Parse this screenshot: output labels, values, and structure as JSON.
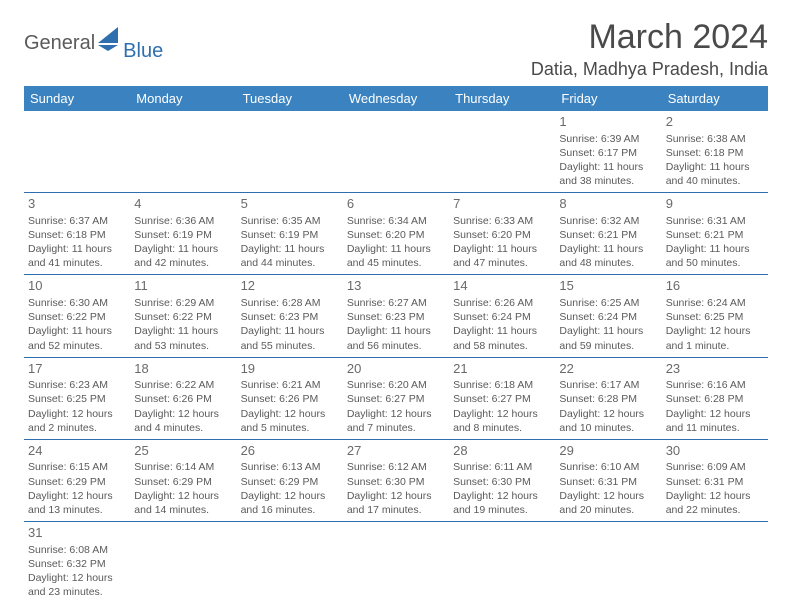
{
  "brand": {
    "part1": "General",
    "part2": "Blue",
    "sail_color": "#2f6fb0"
  },
  "title": "March 2024",
  "location": "Datia, Madhya Pradesh, India",
  "weekdays": [
    "Sunday",
    "Monday",
    "Tuesday",
    "Wednesday",
    "Thursday",
    "Friday",
    "Saturday"
  ],
  "colors": {
    "header_bg": "#3b83c0",
    "header_text": "#ffffff",
    "cell_border": "#2f6fb0",
    "text": "#555555",
    "title_text": "#4a4a4a"
  },
  "weeks": [
    [
      null,
      null,
      null,
      null,
      null,
      {
        "n": "1",
        "sunrise": "6:39 AM",
        "sunset": "6:17 PM",
        "daylight": "11 hours and 38 minutes."
      },
      {
        "n": "2",
        "sunrise": "6:38 AM",
        "sunset": "6:18 PM",
        "daylight": "11 hours and 40 minutes."
      }
    ],
    [
      {
        "n": "3",
        "sunrise": "6:37 AM",
        "sunset": "6:18 PM",
        "daylight": "11 hours and 41 minutes."
      },
      {
        "n": "4",
        "sunrise": "6:36 AM",
        "sunset": "6:19 PM",
        "daylight": "11 hours and 42 minutes."
      },
      {
        "n": "5",
        "sunrise": "6:35 AM",
        "sunset": "6:19 PM",
        "daylight": "11 hours and 44 minutes."
      },
      {
        "n": "6",
        "sunrise": "6:34 AM",
        "sunset": "6:20 PM",
        "daylight": "11 hours and 45 minutes."
      },
      {
        "n": "7",
        "sunrise": "6:33 AM",
        "sunset": "6:20 PM",
        "daylight": "11 hours and 47 minutes."
      },
      {
        "n": "8",
        "sunrise": "6:32 AM",
        "sunset": "6:21 PM",
        "daylight": "11 hours and 48 minutes."
      },
      {
        "n": "9",
        "sunrise": "6:31 AM",
        "sunset": "6:21 PM",
        "daylight": "11 hours and 50 minutes."
      }
    ],
    [
      {
        "n": "10",
        "sunrise": "6:30 AM",
        "sunset": "6:22 PM",
        "daylight": "11 hours and 52 minutes."
      },
      {
        "n": "11",
        "sunrise": "6:29 AM",
        "sunset": "6:22 PM",
        "daylight": "11 hours and 53 minutes."
      },
      {
        "n": "12",
        "sunrise": "6:28 AM",
        "sunset": "6:23 PM",
        "daylight": "11 hours and 55 minutes."
      },
      {
        "n": "13",
        "sunrise": "6:27 AM",
        "sunset": "6:23 PM",
        "daylight": "11 hours and 56 minutes."
      },
      {
        "n": "14",
        "sunrise": "6:26 AM",
        "sunset": "6:24 PM",
        "daylight": "11 hours and 58 minutes."
      },
      {
        "n": "15",
        "sunrise": "6:25 AM",
        "sunset": "6:24 PM",
        "daylight": "11 hours and 59 minutes."
      },
      {
        "n": "16",
        "sunrise": "6:24 AM",
        "sunset": "6:25 PM",
        "daylight": "12 hours and 1 minute."
      }
    ],
    [
      {
        "n": "17",
        "sunrise": "6:23 AM",
        "sunset": "6:25 PM",
        "daylight": "12 hours and 2 minutes."
      },
      {
        "n": "18",
        "sunrise": "6:22 AM",
        "sunset": "6:26 PM",
        "daylight": "12 hours and 4 minutes."
      },
      {
        "n": "19",
        "sunrise": "6:21 AM",
        "sunset": "6:26 PM",
        "daylight": "12 hours and 5 minutes."
      },
      {
        "n": "20",
        "sunrise": "6:20 AM",
        "sunset": "6:27 PM",
        "daylight": "12 hours and 7 minutes."
      },
      {
        "n": "21",
        "sunrise": "6:18 AM",
        "sunset": "6:27 PM",
        "daylight": "12 hours and 8 minutes."
      },
      {
        "n": "22",
        "sunrise": "6:17 AM",
        "sunset": "6:28 PM",
        "daylight": "12 hours and 10 minutes."
      },
      {
        "n": "23",
        "sunrise": "6:16 AM",
        "sunset": "6:28 PM",
        "daylight": "12 hours and 11 minutes."
      }
    ],
    [
      {
        "n": "24",
        "sunrise": "6:15 AM",
        "sunset": "6:29 PM",
        "daylight": "12 hours and 13 minutes."
      },
      {
        "n": "25",
        "sunrise": "6:14 AM",
        "sunset": "6:29 PM",
        "daylight": "12 hours and 14 minutes."
      },
      {
        "n": "26",
        "sunrise": "6:13 AM",
        "sunset": "6:29 PM",
        "daylight": "12 hours and 16 minutes."
      },
      {
        "n": "27",
        "sunrise": "6:12 AM",
        "sunset": "6:30 PM",
        "daylight": "12 hours and 17 minutes."
      },
      {
        "n": "28",
        "sunrise": "6:11 AM",
        "sunset": "6:30 PM",
        "daylight": "12 hours and 19 minutes."
      },
      {
        "n": "29",
        "sunrise": "6:10 AM",
        "sunset": "6:31 PM",
        "daylight": "12 hours and 20 minutes."
      },
      {
        "n": "30",
        "sunrise": "6:09 AM",
        "sunset": "6:31 PM",
        "daylight": "12 hours and 22 minutes."
      }
    ],
    [
      {
        "n": "31",
        "sunrise": "6:08 AM",
        "sunset": "6:32 PM",
        "daylight": "12 hours and 23 minutes."
      },
      null,
      null,
      null,
      null,
      null,
      null
    ]
  ]
}
